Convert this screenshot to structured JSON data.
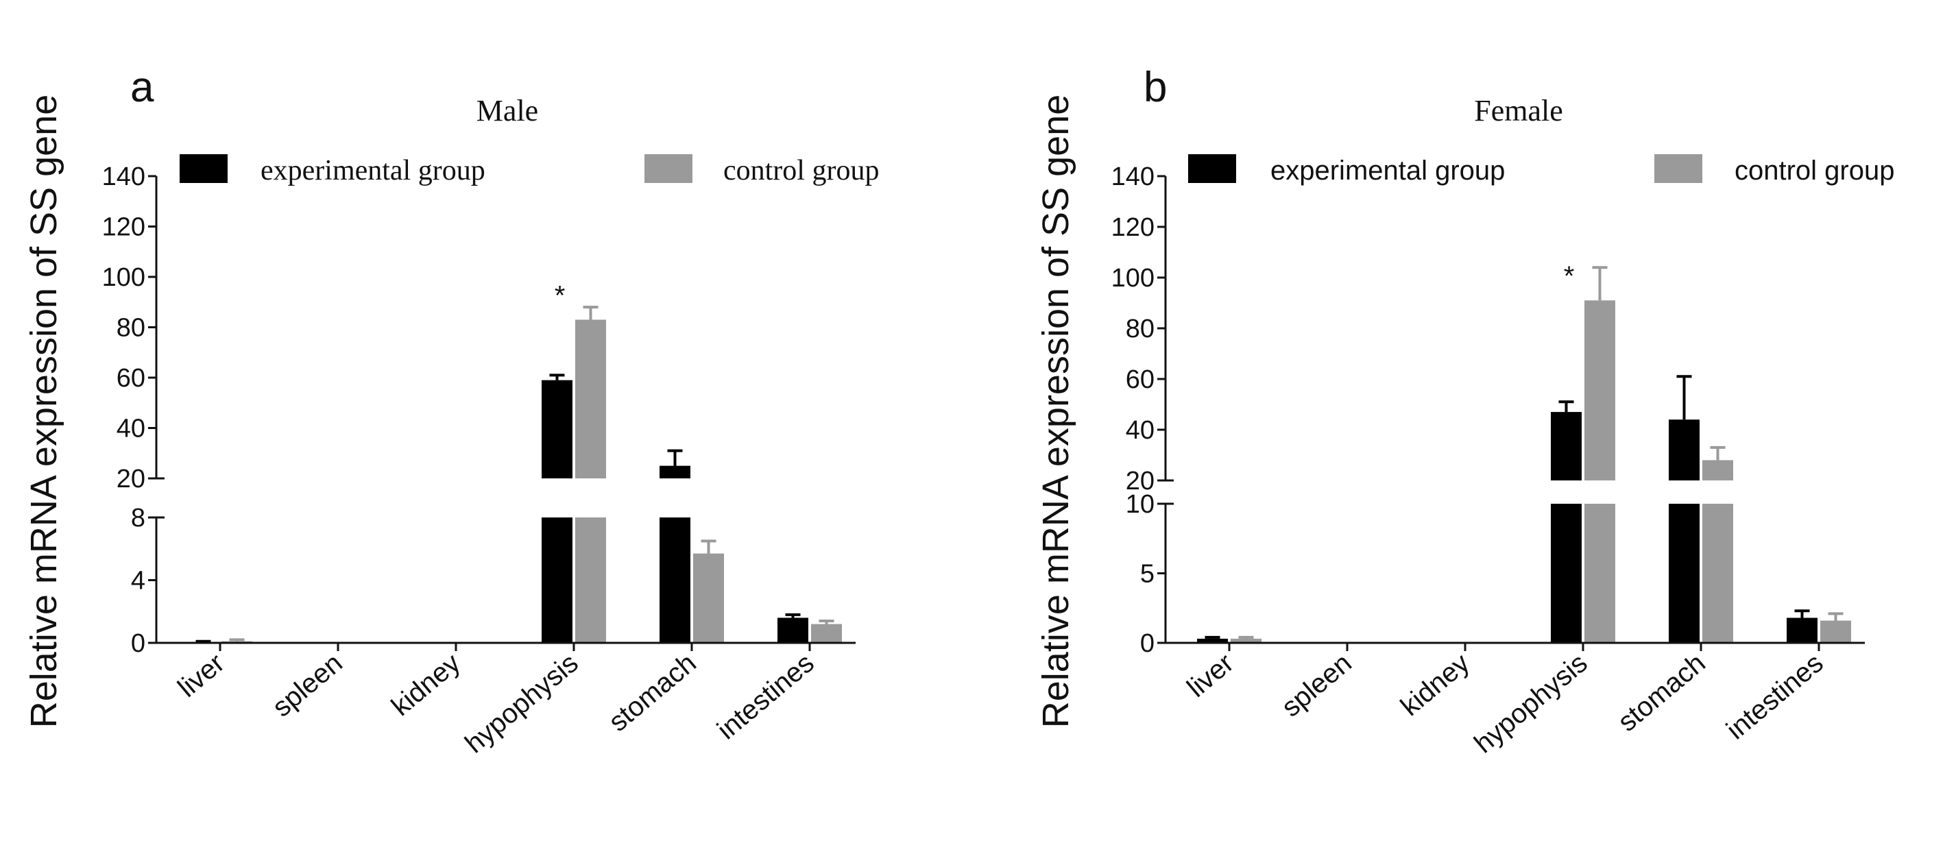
{
  "chart_data": [
    {
      "type": "bar",
      "panel": "a",
      "title": "Male",
      "ylabel": "Relative mRNA expression of SS gene",
      "xlabel": "",
      "categories": [
        "liver",
        "spleen",
        "kidney",
        "hypophysis",
        "stomach",
        "intestines"
      ],
      "series": [
        {
          "name": "experimental group",
          "color": "#000000",
          "values": [
            0.05,
            0,
            0,
            59,
            25,
            1.6
          ],
          "errors": [
            0.05,
            0,
            0,
            2,
            6,
            0.2
          ]
        },
        {
          "name": "control group",
          "color": "#9a9a9a",
          "values": [
            0.1,
            0,
            0,
            83,
            5.7,
            1.2
          ],
          "errors": [
            0.1,
            0,
            0,
            5,
            0.8,
            0.2
          ]
        }
      ],
      "y_axis_break": true,
      "ylim_lower": [
        0,
        8
      ],
      "ylim_upper": [
        20,
        140
      ],
      "yticks_lower": [
        0,
        4,
        8
      ],
      "yticks_upper": [
        20,
        40,
        60,
        80,
        100,
        120,
        140
      ],
      "annotations": [
        {
          "category": "hypophysis",
          "text": "*"
        }
      ],
      "legend_position": "top"
    },
    {
      "type": "bar",
      "panel": "b",
      "title": "Female",
      "ylabel": "Relative mRNA expression of SS gene",
      "xlabel": "",
      "categories": [
        "liver",
        "spleen",
        "kidney",
        "hypophysis",
        "stomach",
        "intestines"
      ],
      "series": [
        {
          "name": "experimental group",
          "color": "#000000",
          "values": [
            0.3,
            0,
            0,
            47,
            44,
            1.8
          ],
          "errors": [
            0.1,
            0,
            0,
            4,
            17,
            0.5
          ]
        },
        {
          "name": "control group",
          "color": "#9a9a9a",
          "values": [
            0.3,
            0,
            0,
            91,
            28,
            1.6
          ],
          "errors": [
            0.1,
            0,
            0,
            13,
            5,
            0.5
          ]
        }
      ],
      "y_axis_break": true,
      "ylim_lower": [
        0,
        10
      ],
      "ylim_upper": [
        20,
        140
      ],
      "yticks_lower": [
        0,
        5,
        10
      ],
      "yticks_upper": [
        20,
        40,
        60,
        80,
        100,
        120,
        140
      ],
      "annotations": [
        {
          "category": "hypophysis",
          "text": "*"
        }
      ],
      "legend_position": "top"
    }
  ]
}
